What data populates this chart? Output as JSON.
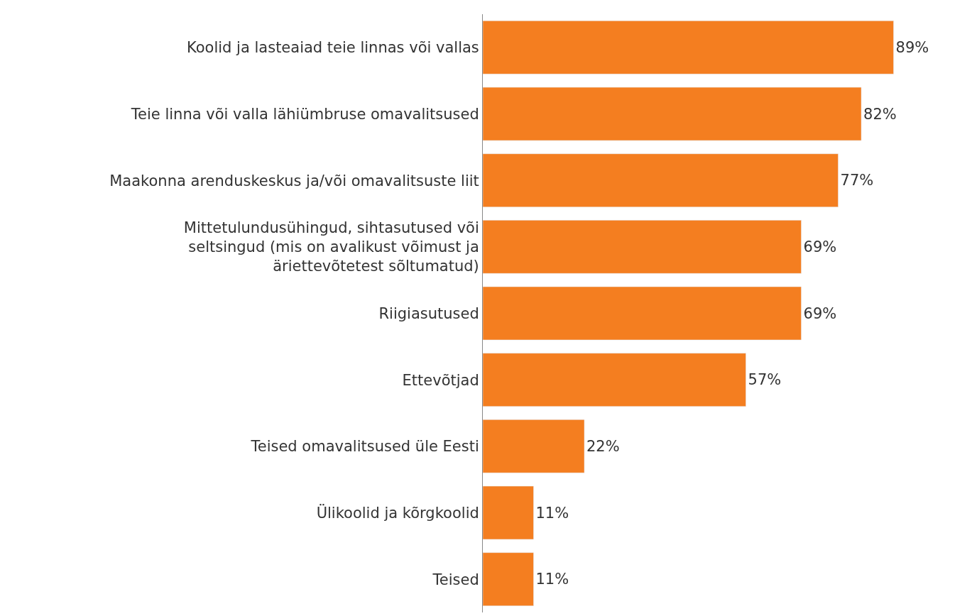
{
  "chart_data": {
    "type": "bar",
    "orientation": "horizontal",
    "categories": [
      "Koolid ja lasteaiad teie linnas või vallas",
      "Teie linna või valla lähiümbruse omavalitsused",
      "Maakonna arenduskeskus ja/või omavalitsuste liit",
      "Mittetulundusühingud, sihtasutused või seltsingud (mis on avalikust võimust ja äriettevõtetest sõltumatud)",
      "Riigiasutused",
      "Ettevõtjad",
      "Teised omavalitsused üle Eesti",
      "Ülikoolid ja kõrgkoolid",
      "Teised"
    ],
    "values": [
      89,
      82,
      77,
      69,
      69,
      57,
      22,
      11,
      11
    ],
    "value_labels": [
      "89%",
      "82%",
      "77%",
      "69%",
      "69%",
      "57%",
      "22%",
      "11%",
      "11%"
    ],
    "color": "#f47e20",
    "tick_labels": "y",
    "legend": false
  }
}
